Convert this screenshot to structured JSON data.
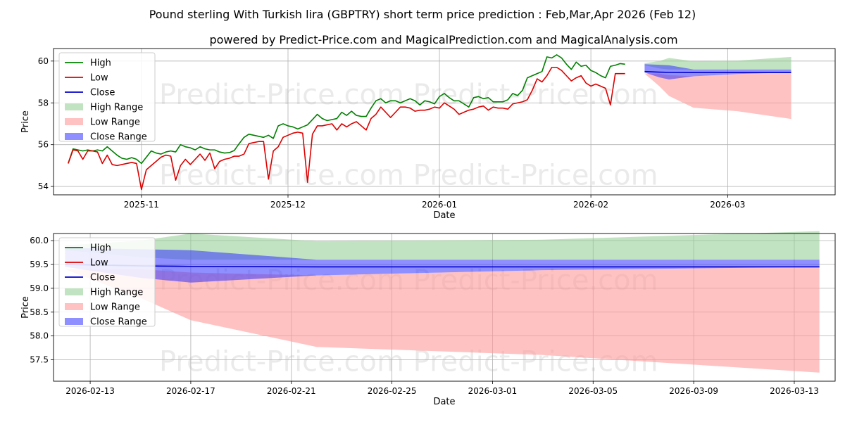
{
  "chart_data": [
    {
      "type": "line",
      "title": "Pound sterling With Turkish lira (GBPTRY) short term price prediction : Feb,Mar,Apr 2026 (Feb 12)",
      "subtitle": "powered by Predict-Price.com and MagicalPrediction.com and MagicalAnalysis.com",
      "watermark": "Predict-Price.com",
      "xlabel": "Date",
      "ylabel": "Price",
      "xlim": [
        "2025-10-14",
        "2026-03-23"
      ],
      "ylim": [
        53.6,
        60.6
      ],
      "xticks": [
        "2025-11",
        "2025-12",
        "2026-01",
        "2026-02",
        "2026-03"
      ],
      "xtick_dates": [
        "2025-11-01",
        "2025-12-01",
        "2026-01-01",
        "2026-02-01",
        "2026-03-01"
      ],
      "yticks": [
        54,
        56,
        58,
        60
      ],
      "ytick_labels": [
        "54",
        "56",
        "58",
        "60"
      ],
      "grid": true,
      "legend_position": "top-left",
      "legend": [
        "High",
        "Low",
        "Close",
        "High Range",
        "Low Range",
        "Close Range"
      ],
      "colors": {
        "high": "#008000",
        "low": "#dd0000",
        "close": "#0000cc",
        "high_range": "#8fcc8f",
        "low_range": "#ff9999",
        "close_range": "#3333ff"
      },
      "history_start": "2025-10-17",
      "high": [
        55.1,
        55.8,
        55.75,
        55.7,
        55.75,
        55.7,
        55.75,
        55.7,
        55.9,
        55.7,
        55.5,
        55.35,
        55.3,
        55.38,
        55.3,
        55.1,
        55.4,
        55.7,
        55.6,
        55.55,
        55.65,
        55.7,
        55.65,
        56.0,
        55.9,
        55.85,
        55.75,
        55.9,
        55.8,
        55.75,
        55.75,
        55.65,
        55.6,
        55.62,
        55.72,
        56.05,
        56.35,
        56.5,
        56.45,
        56.4,
        56.35,
        56.45,
        56.3,
        56.9,
        57.0,
        56.9,
        56.85,
        56.75,
        56.85,
        56.95,
        57.2,
        57.45,
        57.25,
        57.15,
        57.2,
        57.25,
        57.55,
        57.4,
        57.6,
        57.4,
        57.35,
        57.35,
        57.75,
        58.1,
        58.2,
        58.0,
        58.1,
        58.1,
        58.0,
        58.1,
        58.2,
        58.1,
        57.9,
        58.1,
        58.05,
        57.95,
        58.3,
        58.45,
        58.25,
        58.1,
        58.1,
        57.95,
        57.8,
        58.25,
        58.3,
        58.2,
        58.25,
        58.05,
        58.05,
        58.05,
        58.15,
        58.45,
        58.35,
        58.6,
        59.2,
        59.3,
        59.4,
        59.5,
        60.2,
        60.15,
        60.3,
        60.15,
        59.85,
        59.6,
        59.95,
        59.75,
        59.8,
        59.55,
        59.45,
        59.3,
        59.2,
        59.75,
        59.8,
        59.88,
        59.85
      ],
      "low": [
        55.1,
        55.75,
        55.7,
        55.3,
        55.7,
        55.7,
        55.65,
        55.1,
        55.5,
        55.05,
        55.0,
        55.05,
        55.1,
        55.15,
        55.1,
        53.85,
        54.8,
        55.0,
        55.2,
        55.4,
        55.5,
        55.45,
        54.3,
        55.0,
        55.3,
        55.05,
        55.3,
        55.55,
        55.25,
        55.6,
        54.85,
        55.2,
        55.3,
        55.35,
        55.45,
        55.45,
        55.55,
        56.05,
        56.1,
        56.15,
        56.15,
        54.35,
        55.7,
        55.9,
        56.35,
        56.45,
        56.55,
        56.6,
        56.55,
        54.2,
        56.5,
        56.9,
        56.9,
        56.95,
        57.0,
        56.7,
        57.0,
        56.85,
        57.0,
        57.1,
        56.9,
        56.7,
        57.25,
        57.45,
        57.8,
        57.55,
        57.3,
        57.55,
        57.8,
        57.8,
        57.75,
        57.6,
        57.65,
        57.65,
        57.7,
        57.8,
        57.75,
        58.0,
        57.85,
        57.7,
        57.45,
        57.55,
        57.65,
        57.7,
        57.8,
        57.85,
        57.65,
        57.8,
        57.75,
        57.75,
        57.7,
        57.95,
        58.0,
        58.05,
        58.15,
        58.6,
        59.15,
        59.0,
        59.3,
        59.7,
        59.7,
        59.55,
        59.3,
        59.05,
        59.2,
        59.3,
        58.95,
        58.8,
        58.9,
        58.8,
        58.7,
        57.9,
        59.4,
        59.4,
        59.4
      ]
    },
    {
      "type": "area",
      "xlabel": "Date",
      "ylabel": "Price",
      "xlim": [
        "2026-02-11 13:00",
        "2026-03-14 15:00"
      ],
      "ylim": [
        57.05,
        60.15
      ],
      "xticks": [
        "2026-02-13",
        "2026-02-17",
        "2026-02-21",
        "2026-02-25",
        "2026-03-01",
        "2026-03-05",
        "2026-03-09",
        "2026-03-13"
      ],
      "yticks": [
        57.5,
        58.0,
        58.5,
        59.0,
        59.5,
        60.0
      ],
      "ytick_labels": [
        "57.5",
        "58.0",
        "58.5",
        "59.0",
        "59.5",
        "60.0"
      ],
      "grid": true,
      "legend_position": "top-left",
      "legend": [
        "High",
        "Low",
        "Close",
        "High Range",
        "Low Range",
        "Close Range"
      ],
      "forecast_dates": [
        "2026-02-12",
        "2026-02-15",
        "2026-02-17",
        "2026-02-22",
        "2026-03-03",
        "2026-03-14"
      ],
      "high_range_upper": [
        59.9,
        60.0,
        60.15,
        59.99,
        60.02,
        60.2
      ],
      "high_range_lower": [
        59.8,
        59.65,
        59.6,
        59.6,
        59.6,
        59.6
      ],
      "low_range_upper": [
        59.4,
        59.4,
        59.33,
        59.27,
        59.38,
        59.45
      ],
      "low_range_lower": [
        59.4,
        58.8,
        58.33,
        57.77,
        57.6,
        57.23
      ],
      "close_range_upper": [
        59.85,
        59.82,
        59.8,
        59.6,
        59.6,
        59.6
      ],
      "close_range_lower": [
        59.45,
        59.22,
        59.12,
        59.27,
        59.38,
        59.45
      ],
      "close": [
        59.5,
        59.47,
        59.46,
        59.45,
        59.45,
        59.45
      ]
    }
  ]
}
